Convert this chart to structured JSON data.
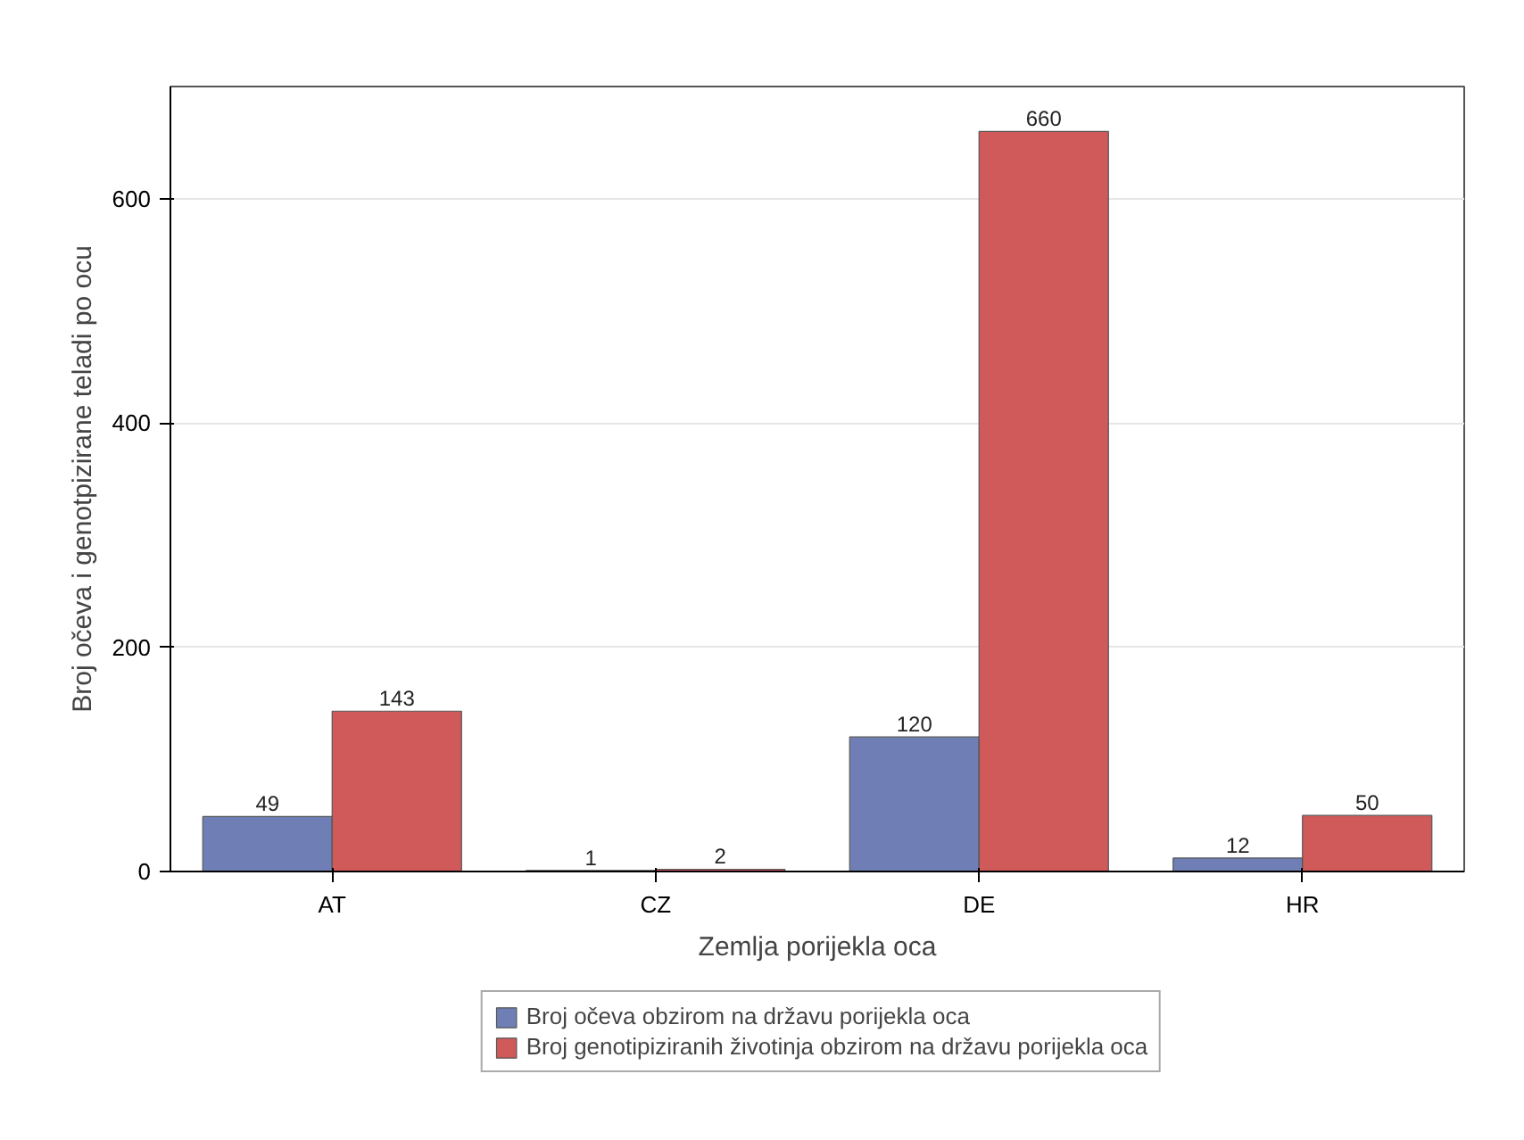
{
  "chart_data": {
    "type": "bar",
    "xlabel": "Zemlja porijekla oca",
    "ylabel": "Broj očeva i genotpizirane teladi po ocu",
    "categories": [
      "AT",
      "CZ",
      "DE",
      "HR"
    ],
    "series": [
      {
        "name": "Broj očeva obzirom na državu porijekla oca",
        "color": "#6f7fb5",
        "values": [
          49,
          1,
          120,
          12
        ]
      },
      {
        "name": "Broj genotipiziranih životinja obzirom na državu porijekla oca",
        "color": "#d05a5a",
        "values": [
          143,
          2,
          660,
          50
        ]
      }
    ],
    "ylim": [
      0,
      700
    ],
    "yticks": [
      0,
      200,
      400,
      600
    ],
    "grid": "y",
    "legend": "bottom",
    "data_labels": true
  }
}
